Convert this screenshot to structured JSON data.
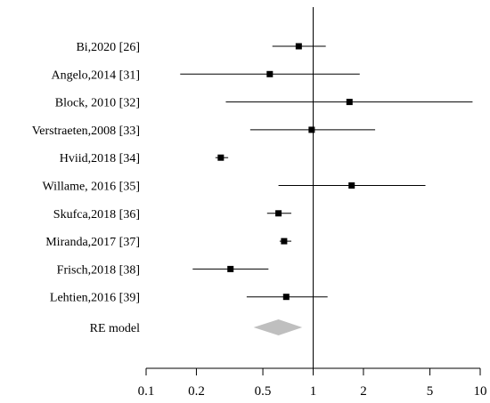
{
  "chart_data": {
    "type": "forest",
    "x_scale": "log",
    "xlim": [
      0.1,
      10
    ],
    "null_line": 1,
    "x_ticks": [
      "0.1",
      "0.2",
      "0.5",
      "1",
      "2",
      "5",
      "10"
    ],
    "studies": [
      {
        "label": "Bi,2020 [26]",
        "estimate": 0.82,
        "ci_low": 0.57,
        "ci_high": 1.19
      },
      {
        "label": "Angelo,2014 [31]",
        "estimate": 0.55,
        "ci_low": 0.16,
        "ci_high": 1.9
      },
      {
        "label": "Block, 2010 [32]",
        "estimate": 1.65,
        "ci_low": 0.3,
        "ci_high": 9.0
      },
      {
        "label": "Verstraeten,2008 [33]",
        "estimate": 0.98,
        "ci_low": 0.42,
        "ci_high": 2.35
      },
      {
        "label": "Hviid,2018 [34]",
        "estimate": 0.28,
        "ci_low": 0.26,
        "ci_high": 0.31
      },
      {
        "label": "Willame, 2016 [35]",
        "estimate": 1.7,
        "ci_low": 0.62,
        "ci_high": 4.7
      },
      {
        "label": "Skufca,2018 [36]",
        "estimate": 0.62,
        "ci_low": 0.53,
        "ci_high": 0.74
      },
      {
        "label": "Miranda,2017 [37]",
        "estimate": 0.67,
        "ci_low": 0.63,
        "ci_high": 0.74
      },
      {
        "label": "Frisch,2018 [38]",
        "estimate": 0.32,
        "ci_low": 0.19,
        "ci_high": 0.54
      },
      {
        "label": "Lehtien,2016 [39]",
        "estimate": 0.69,
        "ci_low": 0.4,
        "ci_high": 1.22
      }
    ],
    "summary": {
      "label": "RE model",
      "estimate": 0.62,
      "ci_low": 0.44,
      "ci_high": 0.86
    },
    "colors": {
      "marker": "#000000",
      "line": "#000000",
      "summary": "#bfbfbf"
    }
  }
}
